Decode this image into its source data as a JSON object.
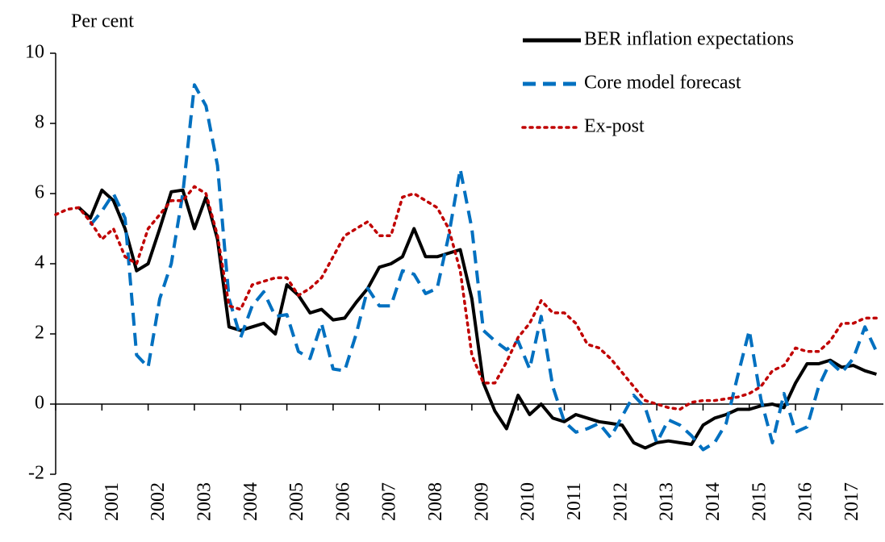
{
  "chart_data": {
    "type": "line",
    "y_label": "Per cent",
    "x": [
      2000,
      2000.25,
      2000.5,
      2000.75,
      2001,
      2001.25,
      2001.5,
      2001.75,
      2002,
      2002.25,
      2002.5,
      2002.75,
      2003,
      2003.25,
      2003.5,
      2003.75,
      2004,
      2004.25,
      2004.5,
      2004.75,
      2005,
      2005.25,
      2005.5,
      2005.75,
      2006,
      2006.25,
      2006.5,
      2006.75,
      2007,
      2007.25,
      2007.5,
      2007.75,
      2008,
      2008.25,
      2008.5,
      2008.75,
      2009,
      2009.25,
      2009.5,
      2009.75,
      2010,
      2010.25,
      2010.5,
      2010.75,
      2011,
      2011.25,
      2011.5,
      2011.75,
      2012,
      2012.25,
      2012.5,
      2012.75,
      2013,
      2013.25,
      2013.5,
      2013.75,
      2014,
      2014.25,
      2014.5,
      2014.75,
      2015,
      2015.25,
      2015.5,
      2015.75,
      2016,
      2016.25,
      2016.5,
      2016.75,
      2017,
      2017.25,
      2017.5,
      2017.75
    ],
    "series": [
      {
        "name": "BER inflation expectations",
        "color": "#000000",
        "dash": "solid",
        "values": [
          null,
          null,
          5.6,
          5.3,
          6.1,
          5.8,
          5.0,
          3.8,
          4.0,
          5.0,
          6.05,
          6.1,
          5.0,
          5.9,
          4.7,
          2.2,
          2.1,
          2.2,
          2.3,
          2.0,
          3.4,
          3.1,
          2.6,
          2.7,
          2.4,
          2.45,
          2.9,
          3.3,
          3.9,
          4.0,
          4.2,
          5.0,
          4.2,
          4.2,
          4.3,
          4.4,
          3.0,
          0.6,
          -0.2,
          -0.7,
          0.25,
          -0.3,
          0.0,
          -0.4,
          -0.5,
          -0.3,
          -0.4,
          -0.5,
          -0.55,
          -0.6,
          -1.1,
          -1.25,
          -1.1,
          -1.05,
          -1.1,
          -1.15,
          -0.6,
          -0.4,
          -0.3,
          -0.15,
          -0.15,
          -0.05,
          0.0,
          -0.1,
          0.6,
          1.15,
          1.15,
          1.25,
          1.05,
          1.1,
          0.95,
          0.85
        ]
      },
      {
        "name": "Core model forecast",
        "color": "#0070c0",
        "dash": "dashed",
        "values": [
          null,
          null,
          null,
          5.1,
          5.5,
          6.0,
          5.3,
          1.4,
          1.05,
          3.0,
          4.0,
          6.0,
          9.1,
          8.5,
          6.8,
          3.0,
          1.9,
          2.8,
          3.2,
          2.5,
          2.55,
          1.5,
          1.3,
          2.3,
          1.0,
          0.95,
          2.0,
          3.3,
          2.8,
          2.8,
          3.8,
          3.7,
          3.15,
          3.3,
          4.8,
          6.7,
          5.0,
          2.1,
          1.8,
          1.55,
          1.8,
          1.0,
          2.5,
          0.5,
          -0.5,
          -0.8,
          -0.7,
          -0.55,
          -0.95,
          -0.35,
          0.25,
          -0.1,
          -1.1,
          -0.45,
          -0.6,
          -0.9,
          -1.3,
          -1.1,
          -0.55,
          0.8,
          2.1,
          0.15,
          -1.1,
          0.3,
          -0.8,
          -0.65,
          0.5,
          1.2,
          0.9,
          1.3,
          2.2,
          1.5
        ]
      },
      {
        "name": "Ex-post",
        "color": "#c00000",
        "dash": "dotted",
        "values": [
          5.4,
          5.55,
          5.6,
          5.2,
          4.7,
          5.0,
          4.2,
          4.0,
          5.0,
          5.4,
          5.8,
          5.8,
          6.2,
          6.0,
          4.8,
          2.8,
          2.7,
          3.4,
          3.5,
          3.6,
          3.6,
          3.1,
          3.3,
          3.6,
          4.2,
          4.8,
          5.0,
          5.2,
          4.8,
          4.8,
          5.9,
          6.0,
          5.8,
          5.6,
          5.0,
          3.8,
          1.4,
          0.6,
          0.6,
          1.2,
          1.9,
          2.3,
          2.95,
          2.6,
          2.6,
          2.3,
          1.7,
          1.6,
          1.3,
          0.9,
          0.5,
          0.1,
          0.0,
          -0.1,
          -0.15,
          0.05,
          0.1,
          0.1,
          0.15,
          0.2,
          0.3,
          0.5,
          0.95,
          1.1,
          1.6,
          1.5,
          1.5,
          1.8,
          2.3,
          2.3,
          2.45,
          2.45
        ]
      }
    ],
    "xlim": [
      2000,
      2017.9
    ],
    "xticks": [
      2000,
      2001,
      2002,
      2003,
      2004,
      2005,
      2006,
      2007,
      2008,
      2009,
      2010,
      2011,
      2012,
      2013,
      2014,
      2015,
      2016,
      2017
    ],
    "ylim": [
      -2,
      10
    ],
    "yticks": [
      -2,
      0,
      2,
      4,
      6,
      8,
      10
    ],
    "grid": false,
    "legend": "top-right"
  }
}
